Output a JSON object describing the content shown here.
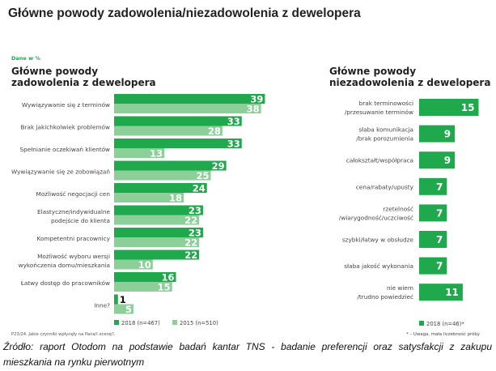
{
  "title": "Główne powody zadowolenia/niezadowolenia z dewelopera",
  "unit_note": "Dane w %",
  "colors": {
    "dark": "#1fa84c",
    "light": "#8ccf99",
    "accent_text": "#1fa84c"
  },
  "chart_data": [
    {
      "type": "bar",
      "orientation": "horizontal",
      "title": "Główne powody zadowolenia z dewelopera",
      "categories": [
        [
          "Wywiązywanie się z terminów"
        ],
        [
          "Brak jakichkolwiek problemów"
        ],
        [
          "Spełnianie oczekiwań klientów"
        ],
        [
          "Wywiązywanie się ze zobowiązań"
        ],
        [
          "Możliwość negocjacji cen"
        ],
        [
          "Elastyczne/indywidualne",
          "podejście do klienta"
        ],
        [
          "Kompetentni pracownicy"
        ],
        [
          "Możliwość wyboru wersji",
          "wykończenia domu/mieszkania"
        ],
        [
          "Łatwy dostęp do pracowników"
        ],
        [
          "Inne?"
        ]
      ],
      "series": [
        {
          "name": "2018 (n=467)",
          "values": [
            39,
            33,
            33,
            29,
            24,
            23,
            23,
            22,
            16,
            1
          ]
        },
        {
          "name": "2015 (n=510)",
          "values": [
            38,
            28,
            13,
            25,
            18,
            22,
            22,
            10,
            15,
            5
          ]
        }
      ],
      "legend": "bottom",
      "footnote": "P23/24. Jakie czynniki wpłynęły na Pana/i ocenę?."
    },
    {
      "type": "bar",
      "orientation": "horizontal",
      "title": "Główne powody niezadowolenia z dewelopera",
      "categories": [
        [
          "brak terminowości",
          "/przesuwanie terminów"
        ],
        [
          "słaba komunikacja",
          "/brak porozumienia"
        ],
        [
          "całokształt/współpraca"
        ],
        [
          "cena/rabaty/upusty"
        ],
        [
          "rzetelność",
          "/wiarygodność/uczciwość"
        ],
        [
          "szybki/łatwy w obsłudze"
        ],
        [
          "słaba jakość wykonania"
        ],
        [
          "nie wiem",
          "/trudno powiedzieć"
        ]
      ],
      "series": [
        {
          "name": "2018 (n=46)*",
          "values": [
            15,
            9,
            9,
            7,
            7,
            7,
            7,
            11
          ]
        }
      ],
      "legend": "bottom",
      "footnote": "* – Uwaga, mała liczebność próby"
    }
  ],
  "source": {
    "line1": "Źródło: raport Otodom na podstawie badań kantar TNS - badanie preferencji oraz satysfakcji z zakupu",
    "line2": "mieszkania na rynku pierwotnym"
  }
}
